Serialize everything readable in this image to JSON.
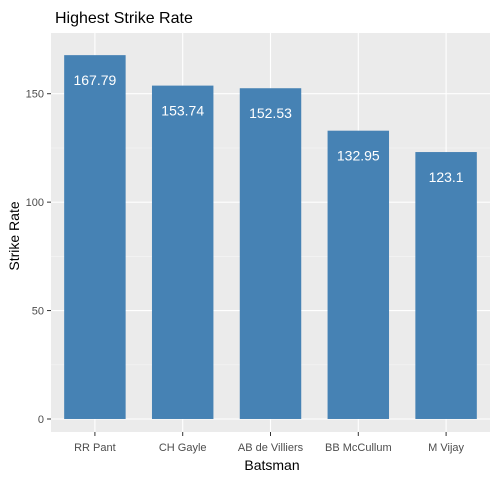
{
  "chart_data": {
    "type": "bar",
    "title": "Highest Strike Rate",
    "xlabel": "Batsman",
    "ylabel": "Strike Rate",
    "categories": [
      "RR Pant",
      "CH Gayle",
      "AB de Villiers",
      "BB McCullum",
      "M Vijay"
    ],
    "values": [
      167.79,
      153.74,
      152.53,
      132.95,
      123.1
    ],
    "value_labels": [
      "167.79",
      "153.74",
      "152.53",
      "132.95",
      "123.1"
    ],
    "ylim": [
      -6,
      178
    ],
    "yticks": [
      0,
      50,
      100,
      150
    ],
    "grid": true,
    "legend": "none",
    "colors": {
      "bar": "#4682b4",
      "panel": "#ebebeb",
      "grid_major": "#ffffff",
      "grid_minor": "#f5f5f5",
      "tick_text": "#4d4d4d",
      "label_text": "#ffffff",
      "title_text": "#000000"
    }
  }
}
